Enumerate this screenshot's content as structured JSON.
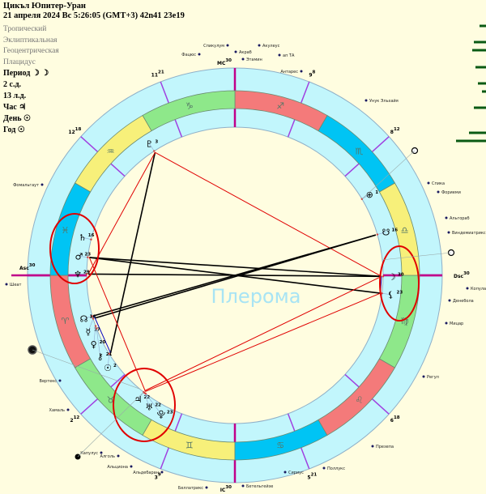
{
  "header": {
    "title": "Цикъл Юпитер-Уран",
    "datetime": "21 апреля 2024  Вс   5:26:05 (GMT+3) 42n41  23e19",
    "zodiac": "Тропический",
    "coords": "Эклиптикальная",
    "center": "Геоцентрическая",
    "houses": "Плацидус",
    "period": "Период ☽ ☽",
    "sd": "2 с.д.",
    "ld": "13 л.д.",
    "hour": "Час ♃",
    "day": "День ☉",
    "year": "Год ☉"
  },
  "watermark": "Плерома",
  "colors": {
    "fire": "#f47a7a",
    "earth": "#8ee88a",
    "air": "#f7f07a",
    "water": "#00c4f4",
    "ring": "#c2f6fc",
    "background": "#fffde0",
    "cusp": "#a040e0",
    "axis": "#c0008a",
    "aspect_hard": "#000000",
    "aspect_red": "#e00000",
    "aspect_blue": "#0000c0",
    "highlight": "#e00000",
    "bars": "#0a5a14"
  },
  "signs": [
    {
      "glyph": "♈",
      "element": "fire"
    },
    {
      "glyph": "♉",
      "element": "earth"
    },
    {
      "glyph": "♊",
      "element": "air"
    },
    {
      "glyph": "♋",
      "element": "water"
    },
    {
      "glyph": "♌",
      "element": "fire"
    },
    {
      "glyph": "♍",
      "element": "earth"
    },
    {
      "glyph": "♎",
      "element": "air"
    },
    {
      "glyph": "♏",
      "element": "water"
    },
    {
      "glyph": "♐",
      "element": "fire"
    },
    {
      "glyph": "♑",
      "element": "earth"
    },
    {
      "glyph": "♒",
      "element": "air"
    },
    {
      "glyph": "♓",
      "element": "water"
    }
  ],
  "houses": [
    {
      "num": "Asc",
      "deg": "30",
      "lon": 0
    },
    {
      "num": "2",
      "deg": "12",
      "lon": 42
    },
    {
      "num": "3",
      "deg": "9",
      "lon": 69
    },
    {
      "num": "IC",
      "deg": "30",
      "lon": 90
    },
    {
      "num": "5",
      "deg": "21",
      "lon": 111
    },
    {
      "num": "6",
      "deg": "18",
      "lon": 138
    },
    {
      "num": "Dsc",
      "deg": "30",
      "lon": 180
    },
    {
      "num": "8",
      "deg": "12",
      "lon": 222
    },
    {
      "num": "9",
      "deg": "8",
      "lon": 249
    },
    {
      "num": "MC",
      "deg": "30",
      "lon": 270
    },
    {
      "num": "11",
      "deg": "21",
      "lon": 291
    },
    {
      "num": "12",
      "deg": "18",
      "lon": 318
    }
  ],
  "planets": [
    {
      "id": "saturn",
      "glyph": "♄",
      "deg": "16",
      "lon": 346
    },
    {
      "id": "mars",
      "glyph": "♂",
      "deg": "23",
      "lon": 353
    },
    {
      "id": "neptune",
      "glyph": "♆",
      "deg": "29",
      "lon": 359.5
    },
    {
      "id": "node",
      "glyph": "☊",
      "deg": "16",
      "lon": 16
    },
    {
      "id": "mercury",
      "glyph": "☿",
      "deg": "17",
      "lon": 17
    },
    {
      "id": "venus",
      "glyph": "♀",
      "deg": "20",
      "lon": 20
    },
    {
      "id": "chiron",
      "glyph": "⚷",
      "deg": "21",
      "lon": 21
    },
    {
      "id": "sun",
      "glyph": "☉",
      "deg": "2",
      "lon": 32
    },
    {
      "id": "jupiter",
      "glyph": "♃",
      "deg": "22",
      "lon": 52
    },
    {
      "id": "uranus",
      "glyph": "♅",
      "deg": "22",
      "lon": 52.4
    },
    {
      "id": "proserpina",
      "glyph": "⯓",
      "deg": "23",
      "lon": 53
    },
    {
      "id": "pluto",
      "glyph": "♇",
      "deg": "3",
      "lon": 303
    },
    {
      "id": "moon",
      "glyph": "☽",
      "deg": "30",
      "lon": 179.6
    },
    {
      "id": "lilith",
      "glyph": "⚸",
      "deg": "23",
      "lon": 173
    },
    {
      "id": "southnode",
      "glyph": "☋",
      "deg": "16",
      "lon": 196
    },
    {
      "id": "fortune",
      "glyph": "⊕",
      "deg": "1",
      "lon": 211
    }
  ],
  "aspects": [
    {
      "a": "pluto",
      "b": "sun",
      "type": "black"
    },
    {
      "a": "pluto",
      "b": "moon",
      "type": "red"
    },
    {
      "a": "pluto",
      "b": "neptune",
      "type": "red"
    },
    {
      "a": "mars",
      "b": "moon",
      "type": "black"
    },
    {
      "a": "mars",
      "b": "lilith",
      "type": "black"
    },
    {
      "a": "neptune",
      "b": "moon",
      "type": "black"
    },
    {
      "a": "node",
      "b": "southnode",
      "type": "black"
    },
    {
      "a": "mercury",
      "b": "southnode",
      "type": "black"
    },
    {
      "a": "jupiter",
      "b": "moon",
      "type": "red"
    },
    {
      "a": "uranus",
      "b": "lilith",
      "type": "red"
    },
    {
      "a": "mars",
      "b": "uranus",
      "type": "red"
    },
    {
      "a": "node",
      "b": "sun",
      "type": "blue"
    },
    {
      "a": "moon",
      "b": "lilith",
      "type": "blue"
    }
  ],
  "stars": [
    "Фацюс",
    "Спикулум",
    "Акраб",
    "Акулеус",
    "Этамин",
    "ап ТА",
    "Антарес",
    "Унук Эльхайя",
    "Спика",
    "Фориеми",
    "Альгораб",
    "Виндемиатрикс",
    "Копула",
    "Денебола",
    "Мицар",
    "Регул",
    "Презепа",
    "Поллукс",
    "Сириус",
    "Бетельгейзе",
    "Беллатрикс",
    "Альдебаран",
    "Альциона",
    "Алголь",
    "Капулус",
    "Хамаль",
    "Вертекс",
    "Шеат",
    "Фомальгаут"
  ]
}
